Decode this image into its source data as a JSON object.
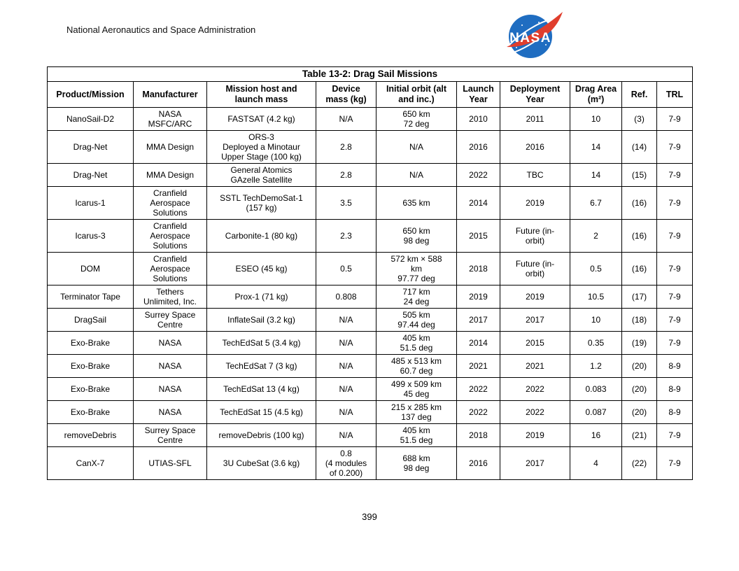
{
  "page": {
    "header_text": "National Aeronautics and Space Administration",
    "page_number": "399"
  },
  "logo": {
    "label": "NASA",
    "blue": "#1f6dc1",
    "red": "#e03e2d",
    "white": "#ffffff"
  },
  "table": {
    "title": "Table 13-2: Drag Sail Missions",
    "columns": [
      "Product/Mission",
      "Manufacturer",
      "Mission host and\nlaunch mass",
      "Device\nmass (kg)",
      "Initial orbit (alt\nand inc.)",
      "Launch\nYear",
      "Deployment\nYear",
      "Drag Area\n(m²)",
      "Ref.",
      "TRL"
    ],
    "rows": [
      [
        "NanoSail-D2",
        "NASA\nMSFC/ARC",
        "FASTSAT (4.2 kg)",
        "N/A",
        "650 km\n72 deg",
        "2010",
        "2011",
        "10",
        "(3)",
        "7-9"
      ],
      [
        "Drag-Net",
        "MMA Design",
        "ORS-3\nDeployed a Minotaur\nUpper Stage (100 kg)",
        "2.8",
        "N/A",
        "2016",
        "2016",
        "14",
        "(14)",
        "7-9"
      ],
      [
        "Drag-Net",
        "MMA Design",
        "General Atomics\nGAzelle Satellite",
        "2.8",
        "N/A",
        "2022",
        "TBC",
        "14",
        "(15)",
        "7-9"
      ],
      [
        "Icarus-1",
        "Cranfield\nAerospace\nSolutions",
        "SSTL TechDemoSat-1\n(157 kg)",
        "3.5",
        "635 km",
        "2014",
        "2019",
        "6.7",
        "(16)",
        "7-9"
      ],
      [
        "Icarus-3",
        "Cranfield\nAerospace\nSolutions",
        "Carbonite-1 (80 kg)",
        "2.3",
        "650 km\n98 deg",
        "2015",
        "Future (in-\norbit)",
        "2",
        "(16)",
        "7-9"
      ],
      [
        "DOM",
        "Cranfield\nAerospace\nSolutions",
        "ESEO (45 kg)",
        "0.5",
        "572 km × 588\nkm\n97.77 deg",
        "2018",
        "Future (in-\norbit)",
        "0.5",
        "(16)",
        "7-9"
      ],
      [
        "Terminator Tape",
        "Tethers\nUnlimited, Inc.",
        "Prox-1 (71 kg)",
        "0.808",
        "717 km\n24 deg",
        "2019",
        "2019",
        "10.5",
        "(17)",
        "7-9"
      ],
      [
        "DragSail",
        "Surrey Space\nCentre",
        "InflateSail (3.2 kg)",
        "N/A",
        "505 km\n97.44 deg",
        "2017",
        "2017",
        "10",
        "(18)",
        "7-9"
      ],
      [
        "Exo-Brake",
        "NASA",
        "TechEdSat 5 (3.4 kg)",
        "N/A",
        "405 km\n51.5 deg",
        "2014",
        "2015",
        "0.35",
        "(19)",
        "7-9"
      ],
      [
        "Exo-Brake",
        "NASA",
        "TechEdSat 7 (3 kg)",
        "N/A",
        "485 x 513 km\n60.7 deg",
        "2021",
        "2021",
        "1.2",
        "(20)",
        "8-9"
      ],
      [
        "Exo-Brake",
        "NASA",
        "TechEdSat 13 (4 kg)",
        "N/A",
        "499 x 509 km\n45 deg",
        "2022",
        "2022",
        "0.083",
        "(20)",
        "8-9"
      ],
      [
        "Exo-Brake",
        "NASA",
        "TechEdSat 15 (4.5 kg)",
        "N/A",
        "215 x 285 km\n137 deg",
        "2022",
        "2022",
        "0.087",
        "(20)",
        "8-9"
      ],
      [
        "removeDebris",
        "Surrey Space\nCentre",
        "removeDebris (100 kg)",
        "N/A",
        "405 km\n51.5 deg",
        "2018",
        "2019",
        "16",
        "(21)",
        "7-9"
      ],
      [
        "CanX-7",
        "UTIAS-SFL",
        "3U CubeSat (3.6 kg)",
        "0.8\n(4 modules\nof 0.200)",
        "688 km\n98 deg",
        "2016",
        "2017",
        "4",
        "(22)",
        "7-9"
      ]
    ]
  }
}
